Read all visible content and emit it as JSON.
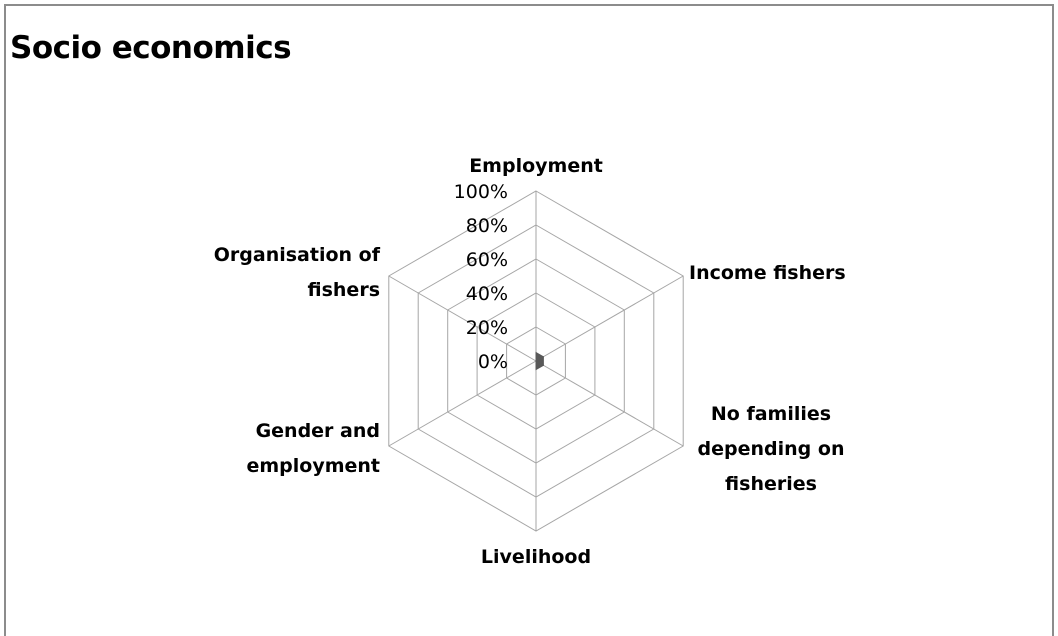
{
  "chart_data": {
    "type": "radar",
    "title": "Socio economics",
    "categories": [
      "Employment",
      "Income fishers",
      "No families depending on fisheries",
      "Livelihood",
      "Gender and employment",
      "Organisation of fishers"
    ],
    "category_lines": [
      [
        "Employment"
      ],
      [
        "Income fishers"
      ],
      [
        "No families",
        "depending on",
        "fisheries"
      ],
      [
        "Livelihood"
      ],
      [
        "Gender and",
        "employment"
      ],
      [
        "Organisation of",
        "fishers"
      ]
    ],
    "ticks": [
      "0%",
      "20%",
      "40%",
      "60%",
      "80%",
      "100%"
    ],
    "ylim": [
      0,
      1
    ],
    "series": [
      {
        "values": [
          0.05,
          0.05,
          0.05,
          0.05,
          0.0,
          0.0
        ],
        "color": "#595959"
      }
    ],
    "grid": true,
    "grid_color": "#a6a6a6",
    "legend": "none"
  }
}
